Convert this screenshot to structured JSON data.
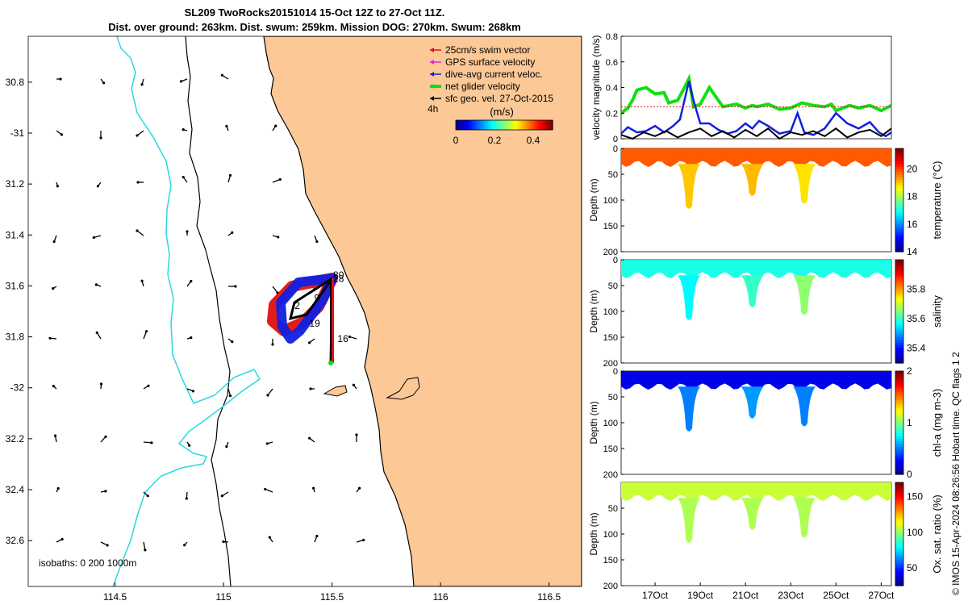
{
  "header": {
    "title_line1": "SL209 TwoRocks20151014 15-Oct 12Z to 27-Oct 11Z.",
    "title_line2": "Dist. over ground: 263km. Dist. swum: 259km. Mission DOG: 270km. Swum: 268km"
  },
  "footer": {
    "stamp": "© IMOS 15-Apr-2024 08:26:56 Hobart time. QC flags 1  2"
  },
  "colors": {
    "land": "#fbc896",
    "coast": "#000000",
    "isobath_200": "#000000",
    "isobath_1000": "#28d8e0",
    "swim": "#e01010",
    "gps": "#e020e0",
    "current": "#1020e0",
    "net": "#10e010",
    "geo": "#000000"
  },
  "chart_data": [
    {
      "type": "map",
      "title": "",
      "xlim": [
        114.1,
        116.65
      ],
      "ylim": [
        -32.78,
        -30.62
      ],
      "x_ticks": [
        114.5,
        115,
        115.5,
        116,
        116.5
      ],
      "x_tick_labels": [
        "114.5",
        "115",
        "115.5",
        "116",
        "116.5"
      ],
      "y_ticks": [
        -30.8,
        -31,
        -31.2,
        -31.4,
        -31.6,
        -31.8,
        -32,
        -32.2,
        -32.4,
        -32.6
      ],
      "y_tick_labels": [
        "30.8",
        "-31",
        "31.2",
        "31.4",
        "31.6",
        "31.8",
        "-32",
        "32.2",
        "32.4",
        "32.6"
      ],
      "legend": {
        "position": "top-right",
        "entries": [
          "25cm/s swim vector",
          "GPS surface velocity",
          "dive-avg current veloc.",
          "net glider velocity",
          "sfc geo. vel. 27-Oct-2015"
        ]
      },
      "speed_colorbar": {
        "title": "(m/s)",
        "range": [
          0,
          0.5
        ],
        "ticks": [
          0,
          0.2,
          0.4
        ],
        "tick_labels": [
          "0",
          "0.2",
          "0.4"
        ]
      },
      "time_step_label": "4h",
      "isobath_label": "isobaths: 0   200   1000m",
      "track_day_labels": [
        {
          "text": "16",
          "lon": 115.55,
          "lat": -31.82
        },
        {
          "text": "19",
          "lon": 115.42,
          "lat": -31.76
        },
        {
          "text": "2",
          "lon": 115.34,
          "lat": -31.69
        },
        {
          "text": "9",
          "lon": 115.43,
          "lat": -31.66
        },
        {
          "text": "80",
          "lon": 115.53,
          "lat": -31.57
        },
        {
          "text": "28",
          "lon": 115.53,
          "lat": -31.585
        }
      ]
    },
    {
      "type": "line",
      "ylabel": "velocity magnitude (m/s)",
      "ylim": [
        0,
        0.8
      ],
      "y_ticks": [
        0,
        0.2,
        0.4,
        0.6,
        0.8
      ],
      "y_tick_labels": [
        "0",
        "0.2",
        "0.4",
        "0.6",
        "0.8"
      ],
      "x_range_days": [
        15.5,
        27.45
      ],
      "series": [
        {
          "name": "net glider velocity",
          "color": "#10e010",
          "days": [
            15.5,
            15.8,
            16,
            16.2,
            16.6,
            17,
            17.4,
            17.6,
            18,
            18.3,
            18.5,
            18.7,
            19,
            19.4,
            20,
            20.6,
            21,
            21.3,
            21.5,
            22,
            22.5,
            23,
            23.5,
            24,
            24.5,
            24.8,
            25,
            25.6,
            26,
            26.5,
            27,
            27.45
          ],
          "values": [
            0.2,
            0.24,
            0.3,
            0.38,
            0.4,
            0.35,
            0.36,
            0.28,
            0.3,
            0.4,
            0.47,
            0.25,
            0.27,
            0.4,
            0.25,
            0.27,
            0.24,
            0.26,
            0.25,
            0.27,
            0.23,
            0.24,
            0.28,
            0.26,
            0.25,
            0.27,
            0.22,
            0.26,
            0.24,
            0.26,
            0.22,
            0.26
          ]
        },
        {
          "name": "dive-avg current veloc.",
          "color": "#1020e0",
          "days": [
            15.5,
            15.8,
            16.2,
            16.6,
            17,
            17.4,
            17.8,
            18.1,
            18.3,
            18.5,
            18.7,
            19,
            19.4,
            19.8,
            20.2,
            20.6,
            21,
            21.3,
            21.6,
            22,
            22.5,
            23,
            23.3,
            23.6,
            24,
            24.5,
            25,
            25.5,
            26,
            26.5,
            26.9,
            27.2,
            27.45
          ],
          "values": [
            0.04,
            0.09,
            0.05,
            0.06,
            0.1,
            0.05,
            0.1,
            0.15,
            0.3,
            0.45,
            0.3,
            0.12,
            0.12,
            0.07,
            0.04,
            0.06,
            0.12,
            0.08,
            0.14,
            0.1,
            0.04,
            0.06,
            0.2,
            0.05,
            0.03,
            0.08,
            0.2,
            0.12,
            0.08,
            0.13,
            0.05,
            0.02,
            0.05
          ]
        },
        {
          "name": "sfc geo. vel.",
          "color": "#000000",
          "days": [
            15.5,
            16,
            16.5,
            17,
            17.5,
            18,
            18.5,
            19,
            19.5,
            20,
            20.5,
            21,
            21.5,
            22,
            22.5,
            23,
            23.5,
            24,
            24.5,
            25,
            25.5,
            26,
            26.5,
            27,
            27.45
          ],
          "values": [
            0.03,
            0.0,
            0.05,
            0.02,
            0.06,
            0.01,
            0.05,
            0.08,
            0.02,
            0.06,
            0.01,
            0.07,
            0.02,
            0.08,
            0.0,
            0.05,
            0.03,
            0.06,
            0.02,
            0.08,
            0.01,
            0.05,
            0.07,
            0.02,
            0.08
          ]
        },
        {
          "name": "swim",
          "color": "#e01010",
          "days": [
            15.5,
            27.45
          ],
          "values": [
            0.25,
            0.25
          ]
        }
      ]
    },
    {
      "type": "heatmap",
      "ylabel": "Depth (m)",
      "colorbar_label": "temperature (°C)",
      "ylim": [
        200,
        0
      ],
      "y_ticks": [
        0,
        50,
        100,
        150,
        200
      ],
      "y_tick_labels": [
        "0",
        "50",
        "100",
        "150",
        "200"
      ],
      "color_range": [
        14,
        21.5
      ],
      "colorbar_ticks": [
        14,
        16,
        18,
        20
      ],
      "colorbar_tick_labels": [
        "14",
        "16",
        "18",
        "20"
      ],
      "background_value": 19.9,
      "dives": [
        {
          "day": 18.5,
          "max_depth": 120,
          "bottom_value": 19.1
        },
        {
          "day": 21.3,
          "max_depth": 95,
          "bottom_value": 19.2
        },
        {
          "day": 23.6,
          "max_depth": 110,
          "bottom_value": 18.9
        }
      ]
    },
    {
      "type": "heatmap",
      "ylabel": "Depth (m)",
      "colorbar_label": "salinity",
      "ylim": [
        200,
        0
      ],
      "y_ticks": [
        0,
        50,
        100,
        150,
        200
      ],
      "y_tick_labels": [
        "0",
        "50",
        "100",
        "150",
        "200"
      ],
      "color_range": [
        35.3,
        36.0
      ],
      "colorbar_ticks": [
        35.4,
        35.6,
        35.8
      ],
      "colorbar_tick_labels": [
        "35.4",
        "35.6",
        "35.8"
      ],
      "background_value": 35.58,
      "dives": [
        {
          "day": 18.5,
          "max_depth": 120,
          "bottom_value": 35.56
        },
        {
          "day": 21.3,
          "max_depth": 95,
          "bottom_value": 35.6
        },
        {
          "day": 23.6,
          "max_depth": 110,
          "bottom_value": 35.66
        }
      ]
    },
    {
      "type": "heatmap",
      "ylabel": "Depth (m)",
      "colorbar_label": "chl-a (mg m-3)",
      "ylim": [
        200,
        0
      ],
      "y_ticks": [
        0,
        50,
        100,
        150,
        200
      ],
      "y_tick_labels": [
        "0",
        "50",
        "100",
        "150",
        "200"
      ],
      "color_range": [
        0,
        2
      ],
      "colorbar_ticks": [
        0,
        1,
        2
      ],
      "colorbar_tick_labels": [
        "0",
        "1",
        "2"
      ],
      "background_value": 0.2,
      "dives": [
        {
          "day": 18.5,
          "max_depth": 120,
          "bottom_value": 0.5
        },
        {
          "day": 21.3,
          "max_depth": 95,
          "bottom_value": 0.55
        },
        {
          "day": 23.6,
          "max_depth": 110,
          "bottom_value": 0.5
        }
      ]
    },
    {
      "type": "heatmap",
      "ylabel": "Depth (m)",
      "colorbar_label": "Ox. sat. ratio (%)",
      "ylim": [
        200,
        0
      ],
      "y_ticks": [
        50,
        100,
        150,
        200
      ],
      "y_tick_labels": [
        "50",
        "100",
        "150",
        "200"
      ],
      "color_range": [
        25,
        170
      ],
      "colorbar_ticks": [
        50,
        100,
        150
      ],
      "colorbar_tick_labels": [
        "50",
        "100",
        "150"
      ],
      "background_value": 108,
      "dives": [
        {
          "day": 18.5,
          "max_depth": 120,
          "bottom_value": 104
        },
        {
          "day": 21.3,
          "max_depth": 95,
          "bottom_value": 104
        },
        {
          "day": 23.6,
          "max_depth": 110,
          "bottom_value": 104
        }
      ],
      "x_ticks": [
        17,
        19,
        21,
        23,
        25,
        27
      ],
      "x_tick_labels": [
        "17Oct",
        "19Oct",
        "21Oct",
        "23Oct",
        "25Oct",
        "27Oct"
      ]
    }
  ]
}
